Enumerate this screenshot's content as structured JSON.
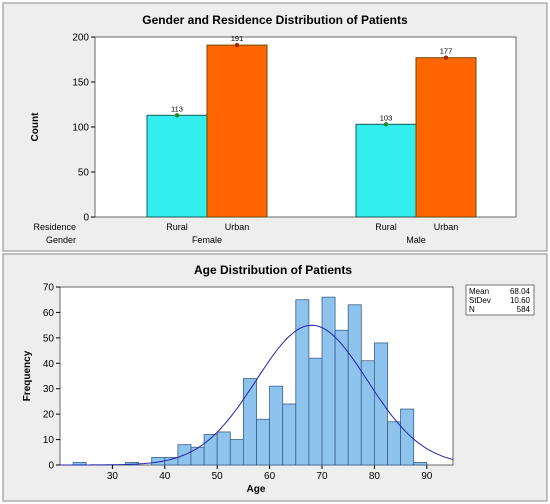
{
  "colors": {
    "panel_bg": "#eeeeee",
    "plot_bg": "#ffffff",
    "rural": "#33eeee",
    "urban": "#ff6600",
    "hist_bar": "#8ec3ee",
    "hist_edge": "#3a5f8a",
    "curve": "#2222aa"
  },
  "chart_data": [
    {
      "type": "bar",
      "title": "Gender and Residence Distribution of Patients",
      "xlabel": "",
      "ylabel": "Count",
      "ylim": [
        0,
        200
      ],
      "yticks": [
        0,
        50,
        100,
        150,
        200
      ],
      "row_labels": [
        "Residence",
        "Gender"
      ],
      "groups": [
        {
          "name": "Female",
          "bars": [
            {
              "name": "Rural",
              "value": 113
            },
            {
              "name": "Urban",
              "value": 191
            }
          ]
        },
        {
          "name": "Male",
          "bars": [
            {
              "name": "Rural",
              "value": 103
            },
            {
              "name": "Urban",
              "value": 177
            }
          ]
        }
      ]
    },
    {
      "type": "bar",
      "subtype": "histogram",
      "title": "Age Distribution of Patients",
      "xlabel": "Age",
      "ylabel": "Frequency",
      "xlim": [
        20,
        95
      ],
      "ylim": [
        0,
        70
      ],
      "xticks": [
        30,
        40,
        50,
        60,
        70,
        80,
        90
      ],
      "yticks": [
        0,
        10,
        20,
        30,
        40,
        50,
        60,
        70
      ],
      "bin_width": 2.5,
      "bins": [
        {
          "x0": 22.5,
          "count": 1
        },
        {
          "x0": 32.5,
          "count": 1
        },
        {
          "x0": 37.5,
          "count": 3
        },
        {
          "x0": 40,
          "count": 3
        },
        {
          "x0": 42.5,
          "count": 8
        },
        {
          "x0": 45,
          "count": 7
        },
        {
          "x0": 47.5,
          "count": 12
        },
        {
          "x0": 50,
          "count": 13
        },
        {
          "x0": 52.5,
          "count": 10
        },
        {
          "x0": 55,
          "count": 34
        },
        {
          "x0": 57.5,
          "count": 18
        },
        {
          "x0": 60,
          "count": 31
        },
        {
          "x0": 62.5,
          "count": 24
        },
        {
          "x0": 65,
          "count": 65
        },
        {
          "x0": 67.5,
          "count": 42
        },
        {
          "x0": 70,
          "count": 66
        },
        {
          "x0": 72.5,
          "count": 53
        },
        {
          "x0": 75,
          "count": 63
        },
        {
          "x0": 77.5,
          "count": 41
        },
        {
          "x0": 80,
          "count": 48
        },
        {
          "x0": 82.5,
          "count": 17
        },
        {
          "x0": 85,
          "count": 22
        },
        {
          "x0": 87.5,
          "count": 1
        }
      ],
      "normal_fit": {
        "mean": 68.04,
        "sd": 10.6,
        "n": 584
      },
      "stats": [
        {
          "label": "Mean",
          "value": "68.04"
        },
        {
          "label": "StDev",
          "value": "10.60"
        },
        {
          "label": "N",
          "value": "584"
        }
      ]
    }
  ]
}
